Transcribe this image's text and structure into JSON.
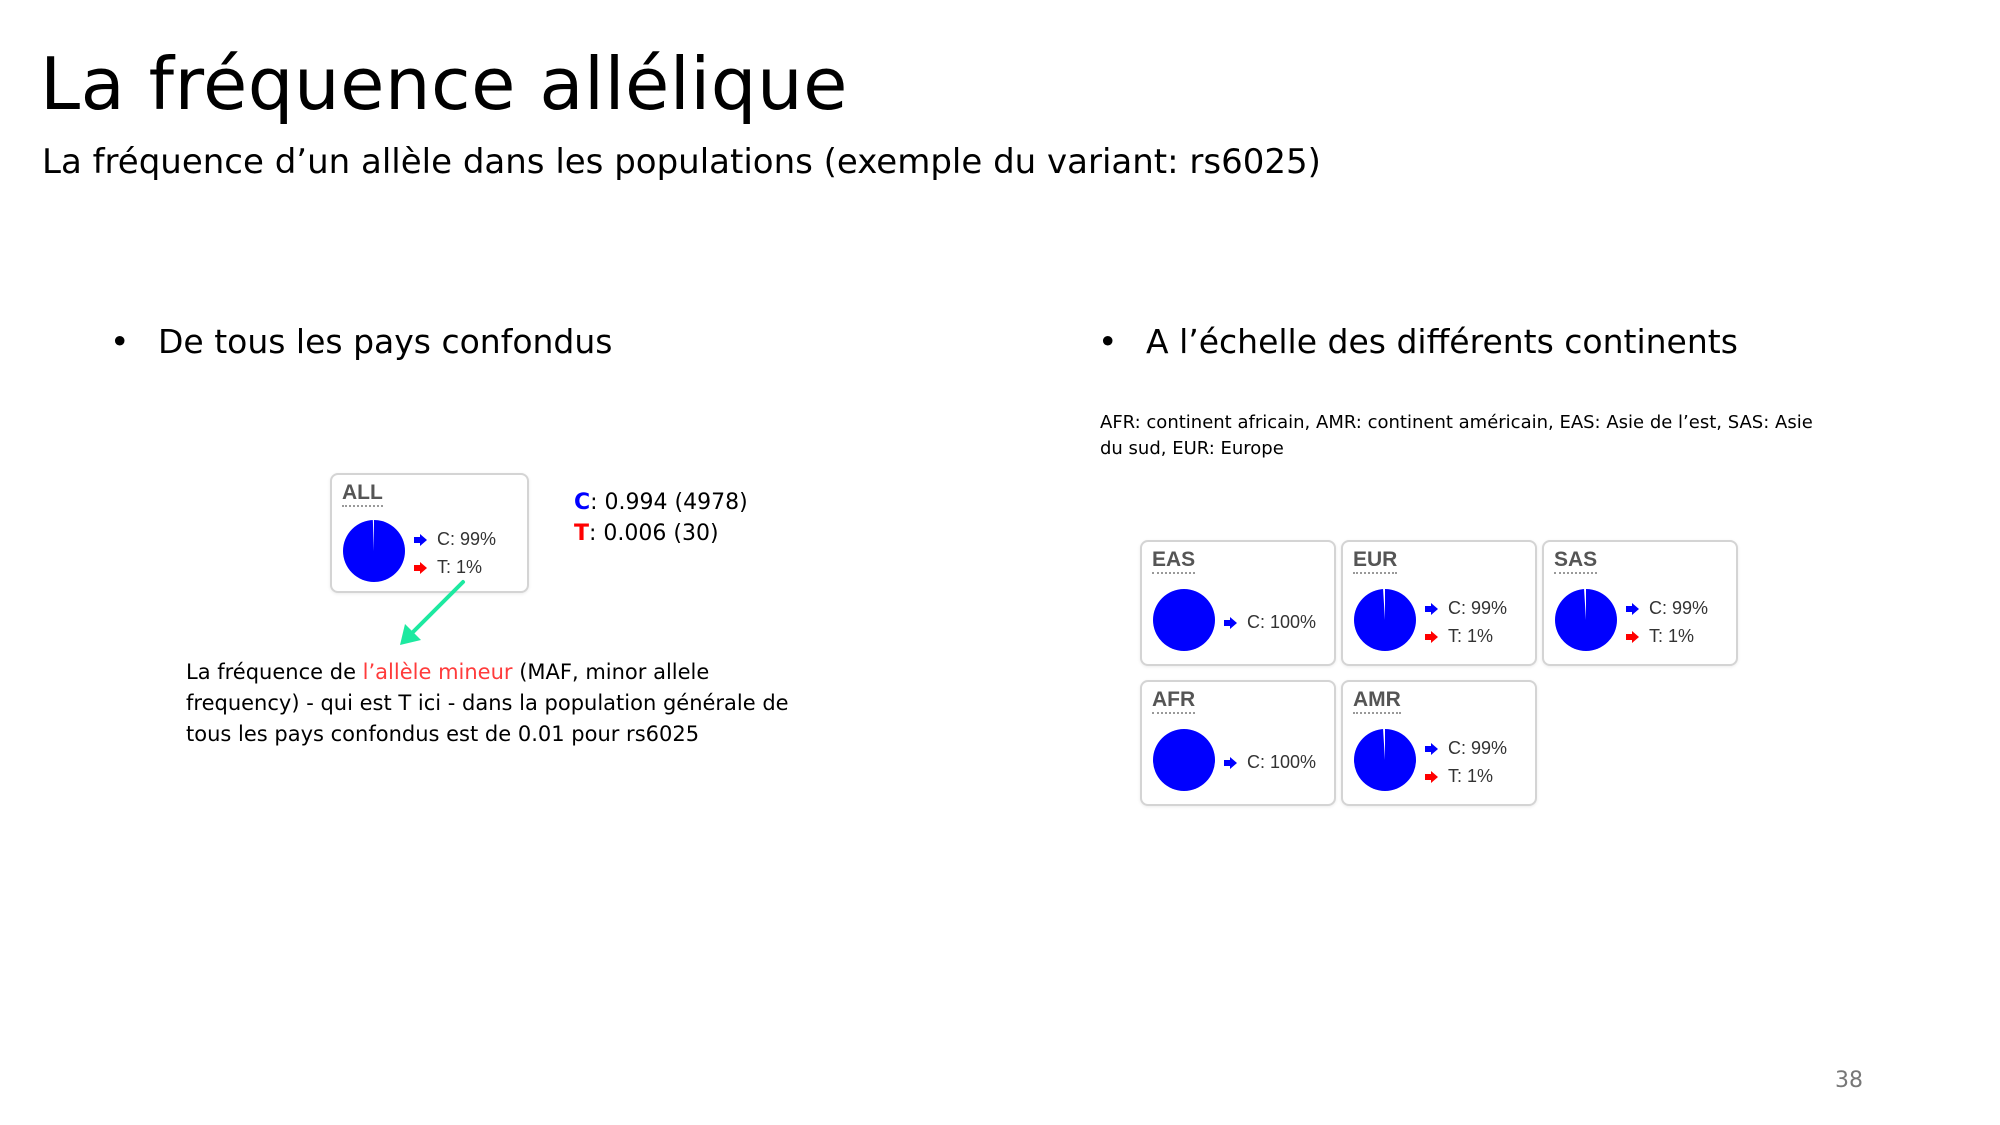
{
  "slide": {
    "title": "La fréquence allélique",
    "subtitle": "La fréquence d’un allèle dans les populations (exemple du variant: rs6025)",
    "bullet_left": "De tous les pays confondus",
    "bullet_right": "A l’échelle des différents continents",
    "bullet_glyph": "•",
    "legend": "AFR: continent africain, AMR: continent américain, EAS: Asie de l’est, SAS: Asie du sud, EUR: Europe",
    "page_number": "38"
  },
  "colors": {
    "allele_c": "#0000ff",
    "allele_t": "#ff0000",
    "arrow": "#1de9a0"
  },
  "overall": {
    "card_label": "ALL",
    "c_label": "C: 99%",
    "t_label": "T: 1%",
    "c_fraction": 0.994,
    "c_allele": "C",
    "c_value": ": 0.994 (4978)",
    "t_allele": "T",
    "t_value": ": 0.006 (30)"
  },
  "note": {
    "part1": "La fréquence de ",
    "highlight": "l’allèle mineur",
    "part2": " (MAF, minor allele frequency) - qui est T ici - dans la population générale de tous les pays confondus est de 0.01 pour rs6025"
  },
  "continents": [
    {
      "label": "EAS",
      "c_label": "C: 100%",
      "t_label": "",
      "c_fraction": 1.0
    },
    {
      "label": "EUR",
      "c_label": "C: 99%",
      "t_label": "T: 1%",
      "c_fraction": 0.99
    },
    {
      "label": "SAS",
      "c_label": "C: 99%",
      "t_label": "T: 1%",
      "c_fraction": 0.99
    },
    {
      "label": "AFR",
      "c_label": "C: 100%",
      "t_label": "",
      "c_fraction": 1.0
    },
    {
      "label": "AMR",
      "c_label": "C: 99%",
      "t_label": "T: 1%",
      "c_fraction": 0.99
    }
  ]
}
